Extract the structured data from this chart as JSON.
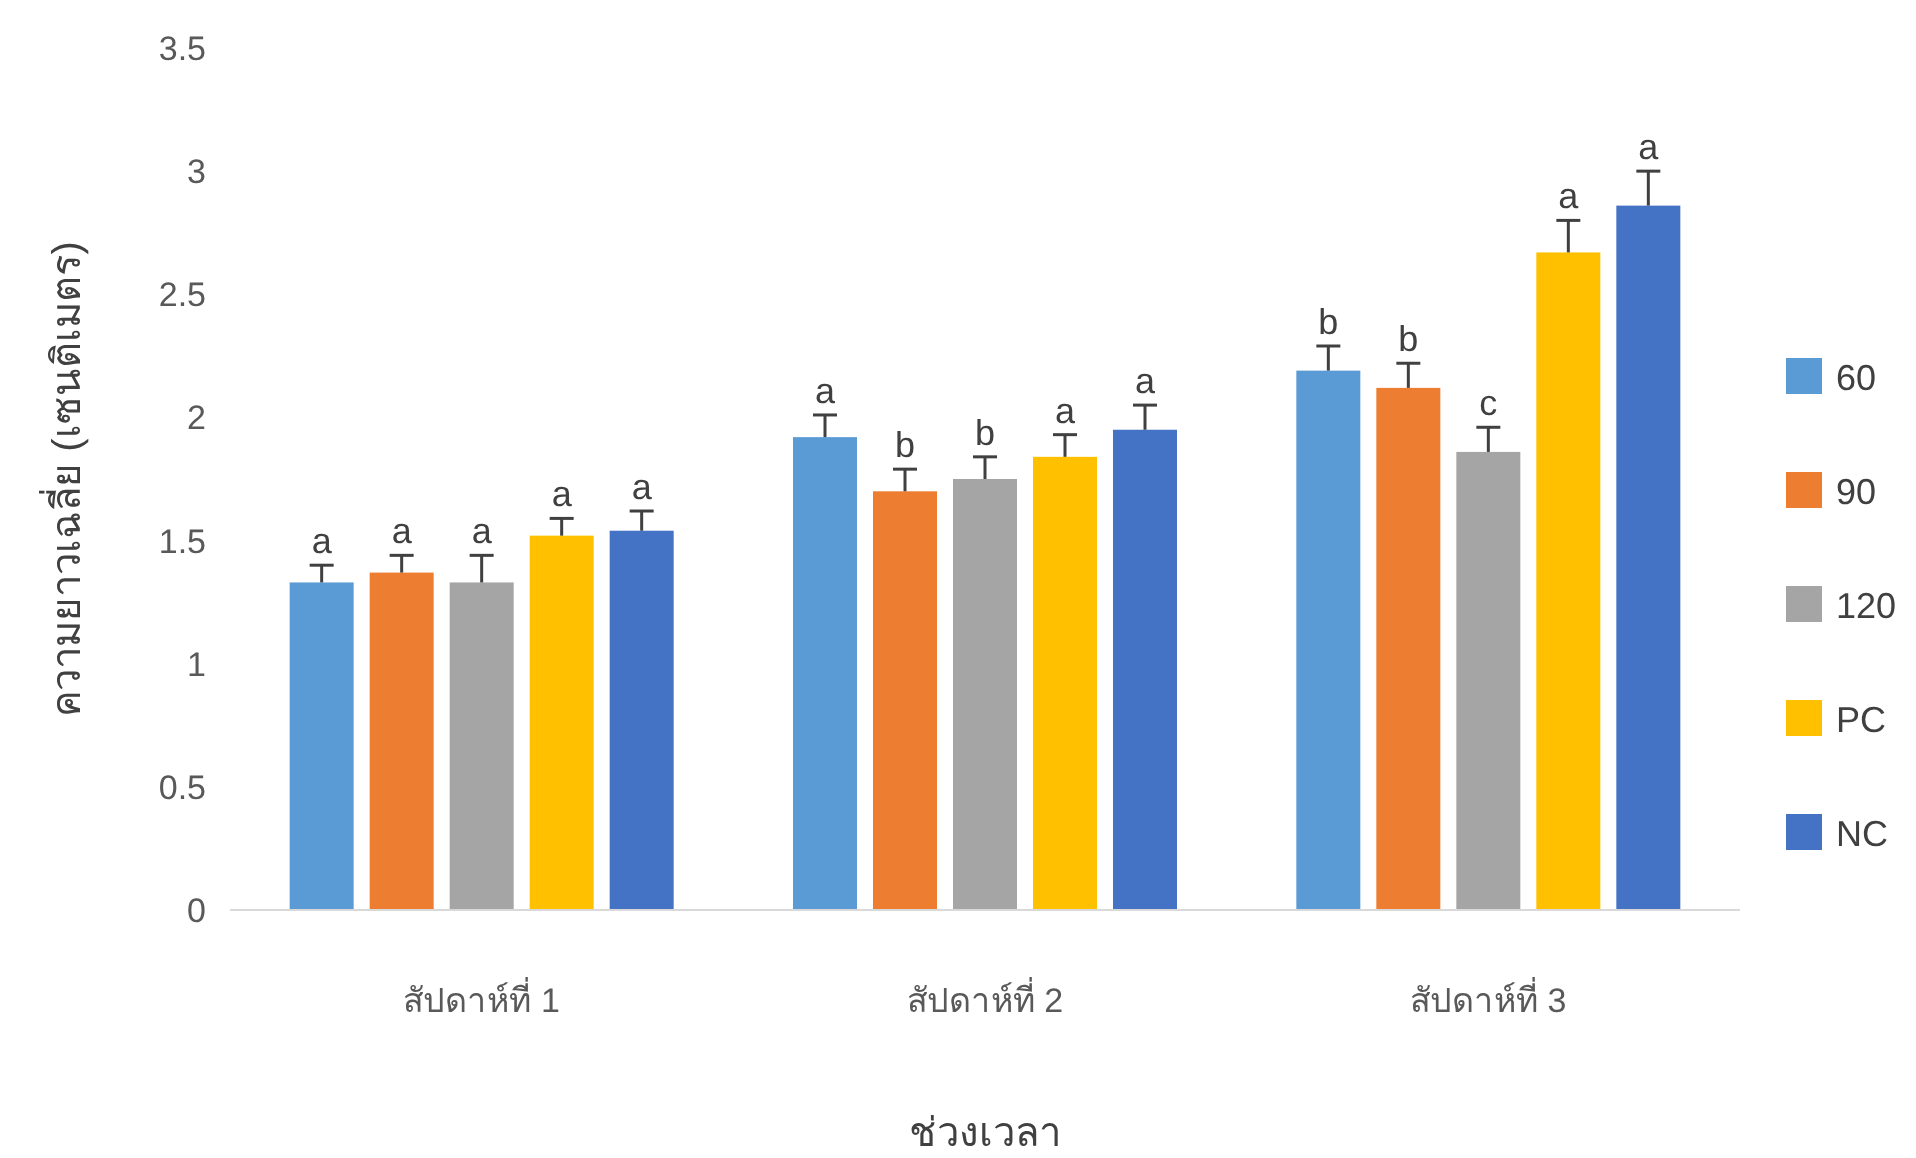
{
  "chart_data": {
    "type": "bar",
    "xlabel": "ช่วงเวลา",
    "ylabel": "ความยาวเฉลี่ย (เซนติเมตร)",
    "categories": [
      "สัปดาห์ที่ 1",
      "สัปดาห์ที่ 2",
      "สัปดาห์ที่ 3"
    ],
    "series": [
      {
        "name": "60",
        "color": "#5b9bd5",
        "values": [
          1.33,
          1.92,
          2.19
        ],
        "errors": [
          0.07,
          0.09,
          0.1
        ],
        "value_labels": [
          "a",
          "a",
          "b"
        ]
      },
      {
        "name": "90",
        "color": "#ed7d31",
        "values": [
          1.37,
          1.7,
          2.12
        ],
        "errors": [
          0.07,
          0.09,
          0.1
        ],
        "value_labels": [
          "a",
          "b",
          "b"
        ]
      },
      {
        "name": "120",
        "color": "#a5a5a5",
        "values": [
          1.33,
          1.75,
          1.86
        ],
        "errors": [
          0.11,
          0.09,
          0.1
        ],
        "value_labels": [
          "a",
          "b",
          "c"
        ]
      },
      {
        "name": "PC",
        "color": "#ffc000",
        "values": [
          1.52,
          1.84,
          2.67
        ],
        "errors": [
          0.07,
          0.09,
          0.13
        ],
        "value_labels": [
          "a",
          "a",
          "a"
        ]
      },
      {
        "name": "NC",
        "color": "#4472c4",
        "values": [
          1.54,
          1.95,
          2.86
        ],
        "errors": [
          0.08,
          0.1,
          0.14
        ],
        "value_labels": [
          "a",
          "a",
          "a"
        ]
      }
    ],
    "ylim": [
      0,
      3.5
    ],
    "yticks": [
      0,
      0.5,
      1,
      1.5,
      2,
      2.5,
      3,
      3.5
    ],
    "grid": false,
    "legend": "right"
  }
}
